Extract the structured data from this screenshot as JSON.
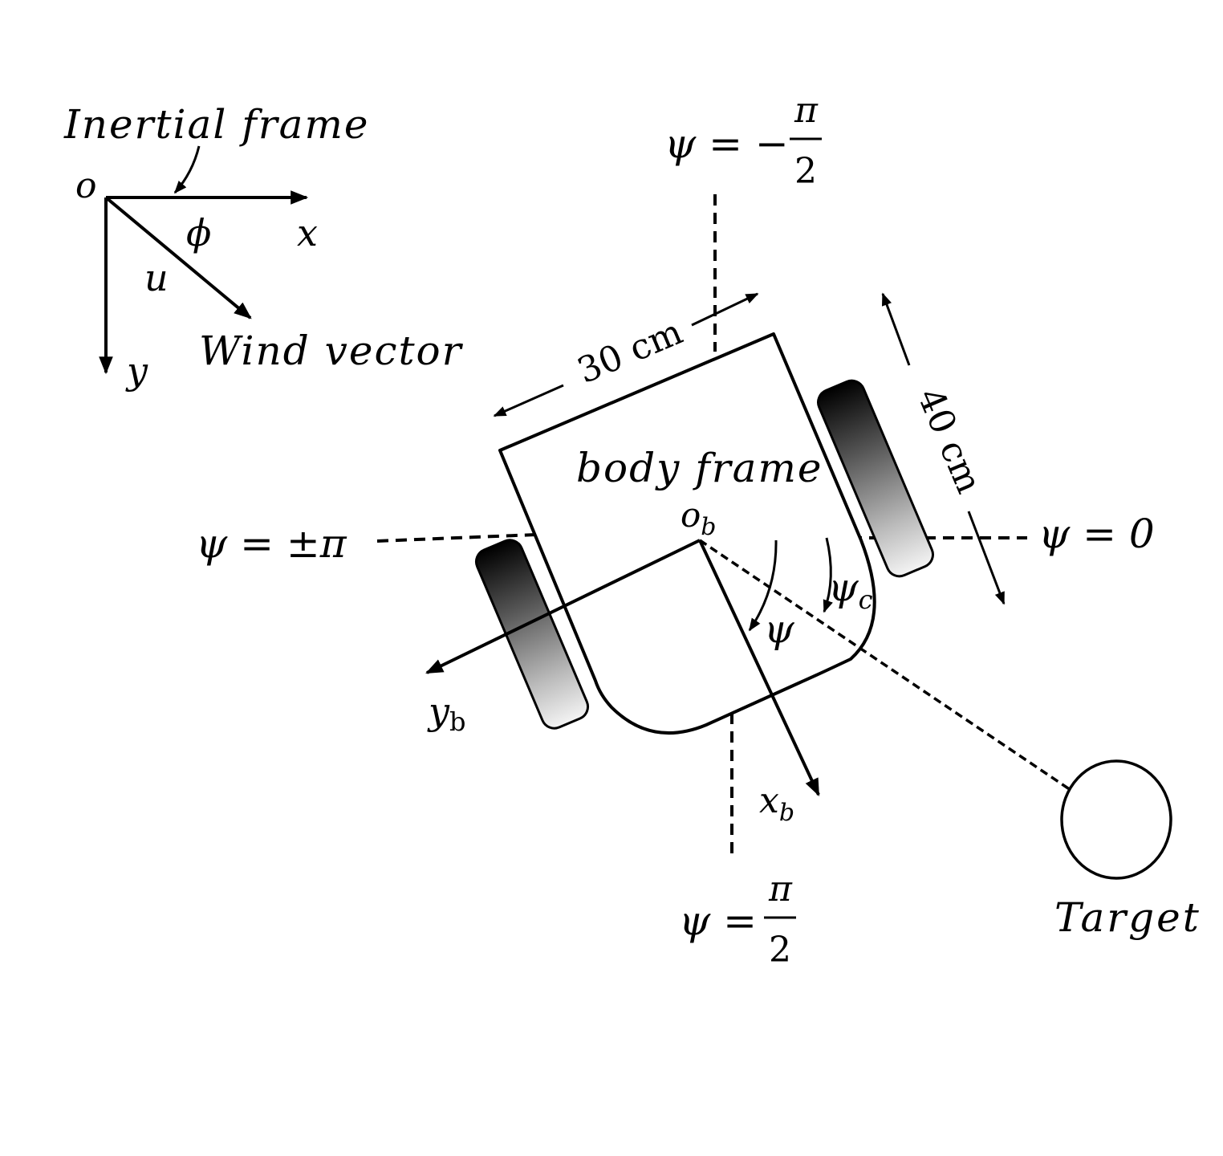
{
  "inertial": {
    "label": "Inertial frame",
    "origin": "o",
    "x_axis": "x",
    "y_axis": "y",
    "angle": "ϕ",
    "speed": "u",
    "wind_label": "Wind vector"
  },
  "body": {
    "label": "body frame",
    "origin_base": "o",
    "origin_sub": "b",
    "x_base": "x",
    "x_sub": "b",
    "y_base": "y",
    "y_sub": "b",
    "width": "30 cm",
    "length": "40 cm"
  },
  "heading": {
    "psi": "ψ",
    "psi_c_base": "ψ",
    "psi_c_sub": "c",
    "zero": "ψ = 0",
    "pi": "ψ = ±π",
    "neg_half_lhs": "ψ = −",
    "pos_half_lhs": "ψ =",
    "pi_sym": "π",
    "two": "2"
  },
  "target": {
    "label": "Target"
  }
}
